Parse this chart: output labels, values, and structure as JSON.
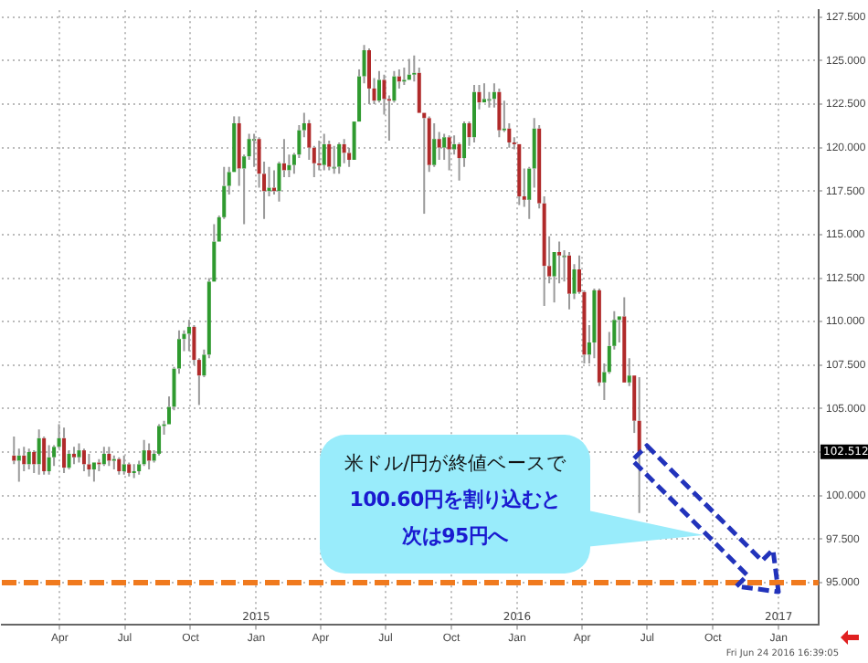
{
  "chart_data": {
    "type": "candlestick",
    "x": [
      "2014-01-27",
      "2014-02-03",
      "2014-02-10",
      "2014-02-17",
      "2014-02-24",
      "2014-03-03",
      "2014-03-10",
      "2014-03-17",
      "2014-03-24",
      "2014-03-31",
      "2014-04-07",
      "2014-04-14",
      "2014-04-21",
      "2014-04-28",
      "2014-05-05",
      "2014-05-12",
      "2014-05-19",
      "2014-05-26",
      "2014-06-02",
      "2014-06-09",
      "2014-06-16",
      "2014-06-23",
      "2014-06-30",
      "2014-07-07",
      "2014-07-14",
      "2014-07-21",
      "2014-07-28",
      "2014-08-04",
      "2014-08-11",
      "2014-08-18",
      "2014-08-25",
      "2014-09-01",
      "2014-09-08",
      "2014-09-15",
      "2014-09-22",
      "2014-09-29",
      "2014-10-06",
      "2014-10-13",
      "2014-10-20",
      "2014-10-27",
      "2014-11-03",
      "2014-11-10",
      "2014-11-17",
      "2014-11-24",
      "2014-12-01",
      "2014-12-08",
      "2014-12-15",
      "2014-12-22",
      "2014-12-29",
      "2015-01-05",
      "2015-01-12",
      "2015-01-19",
      "2015-01-26",
      "2015-02-02",
      "2015-02-09",
      "2015-02-16",
      "2015-02-23",
      "2015-03-02",
      "2015-03-09",
      "2015-03-16",
      "2015-03-23",
      "2015-03-30",
      "2015-04-06",
      "2015-04-13",
      "2015-04-20",
      "2015-04-27",
      "2015-05-04",
      "2015-05-11",
      "2015-05-18",
      "2015-05-25",
      "2015-06-01",
      "2015-06-08",
      "2015-06-15",
      "2015-06-22",
      "2015-06-29",
      "2015-07-06",
      "2015-07-13",
      "2015-07-20",
      "2015-07-27",
      "2015-08-03",
      "2015-08-10",
      "2015-08-17",
      "2015-08-24",
      "2015-08-31",
      "2015-09-07",
      "2015-09-14",
      "2015-09-21",
      "2015-09-28",
      "2015-10-05",
      "2015-10-12",
      "2015-10-19",
      "2015-10-26",
      "2015-11-02",
      "2015-11-09",
      "2015-11-16",
      "2015-11-23",
      "2015-11-30",
      "2015-12-07",
      "2015-12-14",
      "2015-12-21",
      "2015-12-28",
      "2016-01-04",
      "2016-01-11",
      "2016-01-18",
      "2016-01-25",
      "2016-02-01",
      "2016-02-08",
      "2016-02-15",
      "2016-02-22",
      "2016-02-29",
      "2016-03-07",
      "2016-03-14",
      "2016-03-21",
      "2016-03-28",
      "2016-04-04",
      "2016-04-11",
      "2016-04-18",
      "2016-04-25",
      "2016-05-02",
      "2016-05-09",
      "2016-05-16",
      "2016-05-23",
      "2016-05-30",
      "2016-06-06",
      "2016-06-13",
      "2016-06-20"
    ],
    "ohlc": [
      [
        102.3,
        103.4,
        101.8,
        102.0
      ],
      [
        102.0,
        102.7,
        100.8,
        102.3
      ],
      [
        102.3,
        102.8,
        101.4,
        101.8
      ],
      [
        101.8,
        102.7,
        101.5,
        102.5
      ],
      [
        102.5,
        102.6,
        101.3,
        101.8
      ],
      [
        101.8,
        103.8,
        101.2,
        103.3
      ],
      [
        103.3,
        103.4,
        101.2,
        101.4
      ],
      [
        101.4,
        102.9,
        101.2,
        102.2
      ],
      [
        102.2,
        102.9,
        101.7,
        102.8
      ],
      [
        102.8,
        104.1,
        102.7,
        103.3
      ],
      [
        103.3,
        103.9,
        101.3,
        101.6
      ],
      [
        101.6,
        102.6,
        101.5,
        102.4
      ],
      [
        102.4,
        102.8,
        101.8,
        102.2
      ],
      [
        102.2,
        103.0,
        101.9,
        102.6
      ],
      [
        102.6,
        102.7,
        101.4,
        101.8
      ],
      [
        101.8,
        102.4,
        101.1,
        101.5
      ],
      [
        101.5,
        101.9,
        100.8,
        101.9
      ],
      [
        101.9,
        102.1,
        101.4,
        101.8
      ],
      [
        101.8,
        102.8,
        101.7,
        102.4
      ],
      [
        102.4,
        102.8,
        101.7,
        102.0
      ],
      [
        102.0,
        102.3,
        101.5,
        102.1
      ],
      [
        102.1,
        102.2,
        101.2,
        101.4
      ],
      [
        101.4,
        102.3,
        101.2,
        101.8
      ],
      [
        101.8,
        101.9,
        101.1,
        101.3
      ],
      [
        101.3,
        101.8,
        101.0,
        101.4
      ],
      [
        101.4,
        102.0,
        101.2,
        101.8
      ],
      [
        101.8,
        103.2,
        101.7,
        102.6
      ],
      [
        102.6,
        103.0,
        101.5,
        102.0
      ],
      [
        102.0,
        102.6,
        101.9,
        102.4
      ],
      [
        102.4,
        104.1,
        102.3,
        104.0
      ],
      [
        104.0,
        104.3,
        103.5,
        104.1
      ],
      [
        104.1,
        105.7,
        104.1,
        105.1
      ],
      [
        105.1,
        107.4,
        104.9,
        107.3
      ],
      [
        107.3,
        109.5,
        107.0,
        109.0
      ],
      [
        109.0,
        109.5,
        108.3,
        109.3
      ],
      [
        109.3,
        110.1,
        108.3,
        109.7
      ],
      [
        109.7,
        109.8,
        107.5,
        107.8
      ],
      [
        107.8,
        107.9,
        105.2,
        106.9
      ],
      [
        106.9,
        108.4,
        106.8,
        108.1
      ],
      [
        108.1,
        112.5,
        107.9,
        112.3
      ],
      [
        112.3,
        115.6,
        112.3,
        114.6
      ],
      [
        114.6,
        116.1,
        114.6,
        116.0
      ],
      [
        116.0,
        118.9,
        115.9,
        117.8
      ],
      [
        117.8,
        118.9,
        117.3,
        118.6
      ],
      [
        118.6,
        121.8,
        118.6,
        121.4
      ],
      [
        121.4,
        121.8,
        117.8,
        118.8
      ],
      [
        118.8,
        119.6,
        115.6,
        119.5
      ],
      [
        119.5,
        120.8,
        119.3,
        120.5
      ],
      [
        120.5,
        120.8,
        118.9,
        120.5
      ],
      [
        120.5,
        120.6,
        117.7,
        118.5
      ],
      [
        118.5,
        119.2,
        115.9,
        117.5
      ],
      [
        117.5,
        118.9,
        117.2,
        117.7
      ],
      [
        117.7,
        118.7,
        117.3,
        117.5
      ],
      [
        117.5,
        119.2,
        116.9,
        119.1
      ],
      [
        119.1,
        120.5,
        118.3,
        118.7
      ],
      [
        118.7,
        119.6,
        118.3,
        119.0
      ],
      [
        119.0,
        119.7,
        118.5,
        119.6
      ],
      [
        119.6,
        121.3,
        119.4,
        121.0
      ],
      [
        121.0,
        122.0,
        120.6,
        121.4
      ],
      [
        121.4,
        121.6,
        119.3,
        120.0
      ],
      [
        120.0,
        120.1,
        118.3,
        119.1
      ],
      [
        119.1,
        120.4,
        118.7,
        119.0
      ],
      [
        119.0,
        120.8,
        118.7,
        120.2
      ],
      [
        120.2,
        120.4,
        118.7,
        118.9
      ],
      [
        118.9,
        120.1,
        118.5,
        118.9
      ],
      [
        118.9,
        120.3,
        118.5,
        120.2
      ],
      [
        120.2,
        120.5,
        119.1,
        119.7
      ],
      [
        119.7,
        120.0,
        118.9,
        119.3
      ],
      [
        119.3,
        121.5,
        119.3,
        121.5
      ],
      [
        121.5,
        124.5,
        121.5,
        124.1
      ],
      [
        124.1,
        125.9,
        123.7,
        125.6
      ],
      [
        125.6,
        125.7,
        122.5,
        123.4
      ],
      [
        123.4,
        124.0,
        122.5,
        122.7
      ],
      [
        122.7,
        124.4,
        122.6,
        123.9
      ],
      [
        123.9,
        124.2,
        121.9,
        122.8
      ],
      [
        122.8,
        123.0,
        120.4,
        122.7
      ],
      [
        122.7,
        124.4,
        122.6,
        124.1
      ],
      [
        124.1,
        124.5,
        123.4,
        123.8
      ],
      [
        123.8,
        124.6,
        123.6,
        123.9
      ],
      [
        123.9,
        125.1,
        123.9,
        124.2
      ],
      [
        124.2,
        125.3,
        123.8,
        124.3
      ],
      [
        124.3,
        124.6,
        122.0,
        122.0
      ],
      [
        122.0,
        122.0,
        116.2,
        121.7
      ],
      [
        121.7,
        121.8,
        118.6,
        119.0
      ],
      [
        119.0,
        121.4,
        118.9,
        120.5
      ],
      [
        120.5,
        120.9,
        119.3,
        120.0
      ],
      [
        120.0,
        120.8,
        119.3,
        120.6
      ],
      [
        120.6,
        120.7,
        118.7,
        119.9
      ],
      [
        119.9,
        120.7,
        119.6,
        120.2
      ],
      [
        120.2,
        120.3,
        118.1,
        119.4
      ],
      [
        119.4,
        121.5,
        118.9,
        121.4
      ],
      [
        121.4,
        121.5,
        120.1,
        120.6
      ],
      [
        120.6,
        123.6,
        120.3,
        123.2
      ],
      [
        123.2,
        123.6,
        122.2,
        122.6
      ],
      [
        122.6,
        123.7,
        122.6,
        122.8
      ],
      [
        122.8,
        123.2,
        122.3,
        122.8
      ],
      [
        122.8,
        123.7,
        122.3,
        123.2
      ],
      [
        123.2,
        123.4,
        120.6,
        121.0
      ],
      [
        121.0,
        122.7,
        120.9,
        121.1
      ],
      [
        121.1,
        121.4,
        120.0,
        120.3
      ],
      [
        120.3,
        120.6,
        119.9,
        120.2
      ],
      [
        120.2,
        120.2,
        116.7,
        117.2
      ],
      [
        117.2,
        118.8,
        116.6,
        117.0
      ],
      [
        117.0,
        118.9,
        115.9,
        118.8
      ],
      [
        118.8,
        121.7,
        117.7,
        121.1
      ],
      [
        121.1,
        121.3,
        116.5,
        116.8
      ],
      [
        116.8,
        117.2,
        110.9,
        113.2
      ],
      [
        113.2,
        114.9,
        112.2,
        112.6
      ],
      [
        112.6,
        114.0,
        111.1,
        114.0
      ],
      [
        114.0,
        114.6,
        112.2,
        113.8
      ],
      [
        113.8,
        114.1,
        112.3,
        113.8
      ],
      [
        113.8,
        114.0,
        110.7,
        111.6
      ],
      [
        111.6,
        113.3,
        111.3,
        113.0
      ],
      [
        113.0,
        113.8,
        111.6,
        111.7
      ],
      [
        111.7,
        111.8,
        107.6,
        108.1
      ],
      [
        108.1,
        109.8,
        107.6,
        108.8
      ],
      [
        108.8,
        111.9,
        107.9,
        111.8
      ],
      [
        111.8,
        111.9,
        106.3,
        106.5
      ],
      [
        106.5,
        107.6,
        105.5,
        107.1
      ],
      [
        107.1,
        109.4,
        107.0,
        108.6
      ],
      [
        108.6,
        110.6,
        108.4,
        110.1
      ],
      [
        110.1,
        110.3,
        108.8,
        110.3
      ],
      [
        110.3,
        111.4,
        106.5,
        106.5
      ],
      [
        106.5,
        107.9,
        106.3,
        106.9
      ],
      [
        106.9,
        106.9,
        103.6,
        104.3
      ],
      [
        104.3,
        106.8,
        99.0,
        102.512
      ]
    ],
    "xlim": [
      "2014-01-10",
      "2017-02-26"
    ],
    "xticks": [
      {
        "value": "2014-04-01",
        "label": "Apr"
      },
      {
        "value": "2014-07-01",
        "label": "Jul"
      },
      {
        "value": "2014-10-01",
        "label": "Oct"
      },
      {
        "value": "2015-01-01",
        "label": "Jan"
      },
      {
        "value": "2015-04-01",
        "label": "Apr"
      },
      {
        "value": "2015-07-01",
        "label": "Jul"
      },
      {
        "value": "2015-10-01",
        "label": "Oct"
      },
      {
        "value": "2016-01-01",
        "label": "Jan"
      },
      {
        "value": "2016-04-01",
        "label": "Apr"
      },
      {
        "value": "2016-07-01",
        "label": "Jul"
      },
      {
        "value": "2016-10-01",
        "label": "Oct"
      },
      {
        "value": "2017-01-01",
        "label": "Jan"
      }
    ],
    "ylim": [
      92.6,
      127.9
    ],
    "yticks": [
      {
        "value": 95,
        "label": "95.000"
      },
      {
        "value": 97.5,
        "label": "97.500"
      },
      {
        "value": 100,
        "label": "100.000"
      },
      {
        "value": 102.5,
        "label": null
      },
      {
        "value": 105,
        "label": "105.000"
      },
      {
        "value": 107.5,
        "label": "107.500"
      },
      {
        "value": 110,
        "label": "110.000"
      },
      {
        "value": 112.5,
        "label": "112.500"
      },
      {
        "value": 115,
        "label": "115.000"
      },
      {
        "value": 117.5,
        "label": "117.500"
      },
      {
        "value": 120,
        "label": "120.000"
      },
      {
        "value": 122.5,
        "label": "122.500"
      },
      {
        "value": 125,
        "label": "125.000"
      },
      {
        "value": 127.5,
        "label": "127.500"
      }
    ],
    "grid": true,
    "ref_lines": [
      {
        "axis": "y",
        "value": 95,
        "color": "#f07a1e",
        "line_style": "dashed"
      }
    ],
    "annotations": [
      "米ドル/円が終値ベースで",
      "100.60円を割り込むと次は95円へ",
      "Fri Jun 24 2016 16:39:05",
      "102.512",
      "2015",
      "2016",
      "2017"
    ]
  }
}
